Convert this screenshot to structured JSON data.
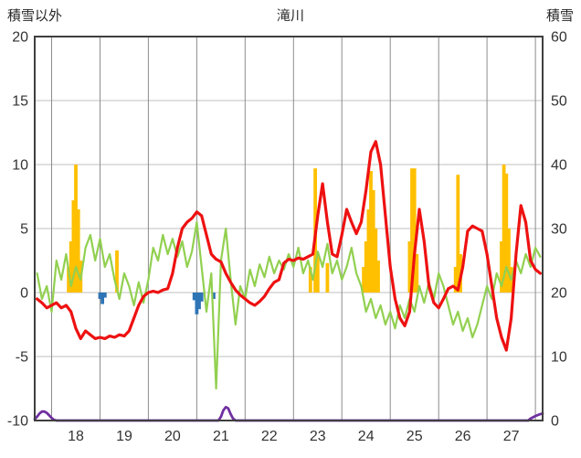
{
  "chart_data": {
    "type": "line",
    "title": "滝川",
    "left_axis": {
      "label": "積雪以外",
      "min": -10,
      "max": 20,
      "ticks": [
        20,
        15,
        10,
        5,
        0,
        -5,
        -10
      ]
    },
    "right_axis": {
      "label": "積雪",
      "min": 0,
      "max": 60,
      "ticks": [
        60,
        50,
        40,
        30,
        20,
        10,
        0
      ]
    },
    "x_axis": {
      "min": 17.65,
      "max": 28.15,
      "day_labels": [
        18,
        19,
        20,
        21,
        22,
        23,
        24,
        25,
        26,
        27
      ],
      "day_gridlines": [
        18,
        19,
        20,
        21,
        22,
        23,
        24,
        25,
        26,
        27,
        28
      ]
    },
    "series": [
      {
        "name": "orange-bars",
        "kind": "bar",
        "axis": "left",
        "color": "#ffc000",
        "points": [
          [
            18.35,
            2.0
          ],
          [
            18.4,
            4.0
          ],
          [
            18.45,
            7.2
          ],
          [
            18.5,
            10.0
          ],
          [
            18.55,
            6.5
          ],
          [
            18.6,
            2.5
          ],
          [
            19.35,
            3.3
          ],
          [
            23.35,
            2.0
          ],
          [
            23.45,
            9.7
          ],
          [
            23.5,
            3.0
          ],
          [
            23.7,
            2.3
          ],
          [
            24.45,
            2.0
          ],
          [
            24.5,
            4.0
          ],
          [
            24.55,
            6.5
          ],
          [
            24.6,
            9.5
          ],
          [
            24.65,
            8.0
          ],
          [
            24.7,
            5.0
          ],
          [
            24.75,
            2.5
          ],
          [
            25.4,
            4.0
          ],
          [
            25.45,
            9.7
          ],
          [
            25.5,
            9.7
          ],
          [
            25.55,
            3.0
          ],
          [
            26.35,
            2.0
          ],
          [
            26.4,
            9.2
          ],
          [
            26.45,
            3.0
          ],
          [
            27.3,
            4.0
          ],
          [
            27.35,
            10.0
          ],
          [
            27.4,
            9.3
          ],
          [
            27.45,
            5.0
          ],
          [
            27.5,
            2.0
          ]
        ]
      },
      {
        "name": "blue-bars",
        "kind": "bar",
        "axis": "left",
        "color": "#2e75b6",
        "points": [
          [
            19.0,
            -0.5
          ],
          [
            19.05,
            -0.9
          ],
          [
            19.1,
            -0.4
          ],
          [
            20.95,
            -0.6
          ],
          [
            21.0,
            -1.7
          ],
          [
            21.05,
            -1.3
          ],
          [
            21.1,
            -0.7
          ],
          [
            21.35,
            -0.5
          ]
        ]
      },
      {
        "name": "green-line",
        "kind": "line",
        "axis": "left",
        "color": "#92d050",
        "width": 2.2,
        "x_start": 17.7,
        "x_step": 0.1,
        "values": [
          1.5,
          -0.5,
          0.5,
          -1.5,
          2.5,
          1.0,
          3.0,
          0.5,
          2.0,
          1.0,
          3.5,
          4.5,
          2.5,
          4.2,
          2.0,
          3.0,
          1.0,
          -0.5,
          1.5,
          0.5,
          -1.0,
          0.8,
          -0.8,
          1.0,
          3.5,
          2.5,
          4.5,
          3.0,
          4.2,
          2.8,
          4.0,
          2.0,
          3.2,
          5.5,
          2.0,
          -1.5,
          1.5,
          -7.5,
          2.5,
          5.0,
          1.0,
          -2.5,
          0.5,
          -0.5,
          1.8,
          0.5,
          2.2,
          1.2,
          2.8,
          1.5,
          2.5,
          1.8,
          3.0,
          2.0,
          3.5,
          1.5,
          2.5,
          1.0,
          3.2,
          2.0,
          3.8,
          1.5,
          2.5,
          1.0,
          2.0,
          3.5,
          1.5,
          0.5,
          -1.5,
          -0.5,
          -2.0,
          -1.0,
          -2.5,
          -1.5,
          -2.8,
          -1.0,
          -2.0,
          -0.5,
          -1.5,
          0.5,
          -0.8,
          0.8,
          -0.5,
          1.5,
          0.5,
          -1.0,
          -2.5,
          -1.5,
          -3.0,
          -2.0,
          -3.5,
          -2.5,
          -1.0,
          0.5,
          -0.5,
          1.5,
          0.5,
          2.0,
          1.0,
          2.5,
          1.5,
          3.0,
          2.0,
          3.5,
          2.8
        ]
      },
      {
        "name": "red-line",
        "kind": "line",
        "axis": "left",
        "color": "#ee1111",
        "width": 3.2,
        "x_start": 17.7,
        "x_step": 0.1,
        "values": [
          -0.5,
          -0.8,
          -1.2,
          -1.0,
          -0.8,
          -1.2,
          -1.0,
          -1.5,
          -2.8,
          -3.6,
          -3.0,
          -3.3,
          -3.6,
          -3.5,
          -3.6,
          -3.4,
          -3.5,
          -3.3,
          -3.4,
          -3.0,
          -2.0,
          -1.0,
          -0.3,
          0.0,
          0.1,
          0.0,
          0.2,
          0.3,
          1.5,
          3.5,
          5.0,
          5.5,
          5.8,
          6.3,
          6.0,
          4.5,
          3.0,
          2.6,
          2.4,
          1.5,
          0.8,
          0.2,
          -0.2,
          -0.5,
          -0.8,
          -1.0,
          -0.7,
          -0.3,
          0.3,
          0.8,
          1.0,
          2.3,
          2.6,
          2.5,
          2.7,
          2.6,
          2.8,
          3.0,
          6.0,
          8.5,
          5.5,
          3.0,
          2.8,
          4.5,
          6.5,
          5.5,
          4.6,
          5.5,
          8.0,
          11.0,
          11.8,
          10.0,
          6.0,
          2.0,
          -0.5,
          -2.0,
          -2.6,
          -1.5,
          3.0,
          6.5,
          4.0,
          0.5,
          -0.8,
          -1.2,
          -0.5,
          0.3,
          0.5,
          0.2,
          2.0,
          4.8,
          5.2,
          5.0,
          4.8,
          3.0,
          0.5,
          -2.0,
          -3.5,
          -4.5,
          -2.0,
          3.0,
          6.8,
          5.5,
          2.5,
          1.8,
          1.5
        ]
      },
      {
        "name": "purple-line",
        "kind": "line",
        "axis": "right",
        "color": "#7030a0",
        "width": 2.8,
        "points": [
          [
            17.65,
            0.2
          ],
          [
            17.7,
            0.6
          ],
          [
            17.75,
            1.1
          ],
          [
            17.8,
            1.4
          ],
          [
            17.85,
            1.4
          ],
          [
            17.9,
            1.2
          ],
          [
            17.95,
            0.8
          ],
          [
            18.0,
            0.4
          ],
          [
            18.05,
            0.1
          ],
          [
            18.1,
            0
          ],
          [
            21.45,
            0
          ],
          [
            21.5,
            0.6
          ],
          [
            21.55,
            1.6
          ],
          [
            21.6,
            2.1
          ],
          [
            21.65,
            1.9
          ],
          [
            21.7,
            1.0
          ],
          [
            21.75,
            0.3
          ],
          [
            21.8,
            0
          ],
          [
            27.85,
            0
          ],
          [
            27.9,
            0.3
          ],
          [
            28.0,
            0.7
          ],
          [
            28.1,
            1.0
          ],
          [
            28.15,
            1.1
          ]
        ]
      }
    ]
  }
}
